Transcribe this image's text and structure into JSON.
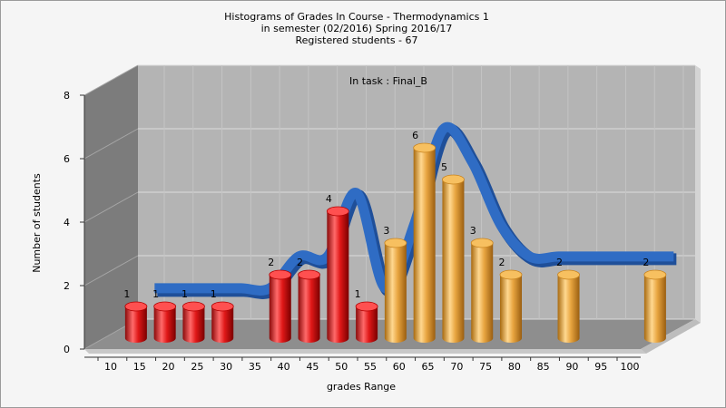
{
  "chart_data": {
    "type": "bar",
    "title_lines": [
      "Histograms of Grades  In Course - Thermodynamics 1",
      "in semester  (02/2016) Spring 2016/17",
      "Registered students - 67"
    ],
    "subtitle": "In task : Final_B",
    "xlabel": "grades Range",
    "ylabel": "Number of students",
    "ylim": [
      0,
      8
    ],
    "yticks": [
      0,
      2,
      4,
      6,
      8
    ],
    "grid": true,
    "categories": [
      "10",
      "15",
      "20",
      "25",
      "30",
      "35",
      "40",
      "45",
      "50",
      "55",
      "60",
      "65",
      "70",
      "75",
      "80",
      "85",
      "90",
      "95",
      "100"
    ],
    "bars": [
      {
        "x": 12.5,
        "value": 1,
        "color": "#e02020"
      },
      {
        "x": 17.5,
        "value": 1,
        "color": "#e02020"
      },
      {
        "x": 22.5,
        "value": 1,
        "color": "#e02020"
      },
      {
        "x": 27.5,
        "value": 1,
        "color": "#e02020"
      },
      {
        "x": 37.5,
        "value": 2,
        "color": "#e02020"
      },
      {
        "x": 42.5,
        "value": 2,
        "color": "#e02020"
      },
      {
        "x": 47.5,
        "value": 4,
        "color": "#e02020"
      },
      {
        "x": 52.5,
        "value": 1,
        "color": "#e02020"
      },
      {
        "x": 57.5,
        "value": 3,
        "color": "#e8a540"
      },
      {
        "x": 62.5,
        "value": 6,
        "color": "#e8a540"
      },
      {
        "x": 67.5,
        "value": 5,
        "color": "#e8a540"
      },
      {
        "x": 72.5,
        "value": 3,
        "color": "#e8a540"
      },
      {
        "x": 77.5,
        "value": 2,
        "color": "#e8a540"
      },
      {
        "x": 87.5,
        "value": 2,
        "color": "#e8a540"
      },
      {
        "x": 102.5,
        "value": 2,
        "color": "#e8a540"
      }
    ],
    "trend": {
      "x": [
        12.5,
        17.5,
        22.5,
        27.5,
        32.5,
        37.5,
        42.5,
        47.5,
        52.5,
        57.5,
        62.5,
        67.5,
        72.5,
        77.5,
        82.5,
        87.5,
        92.5,
        97.5,
        102.5
      ],
      "values": [
        1,
        1,
        1,
        1,
        1,
        2,
        2,
        4,
        1,
        3,
        6,
        5,
        3,
        2,
        2,
        2,
        2,
        2,
        2
      ],
      "color": "#2f6cc4"
    },
    "colors": {
      "background": "#f5f5f5",
      "plot_back": "#b4b4b4",
      "plot_left": "#7c7c7c",
      "plot_floor": "#8e8e8e",
      "grid": "#dcdcdc"
    }
  }
}
